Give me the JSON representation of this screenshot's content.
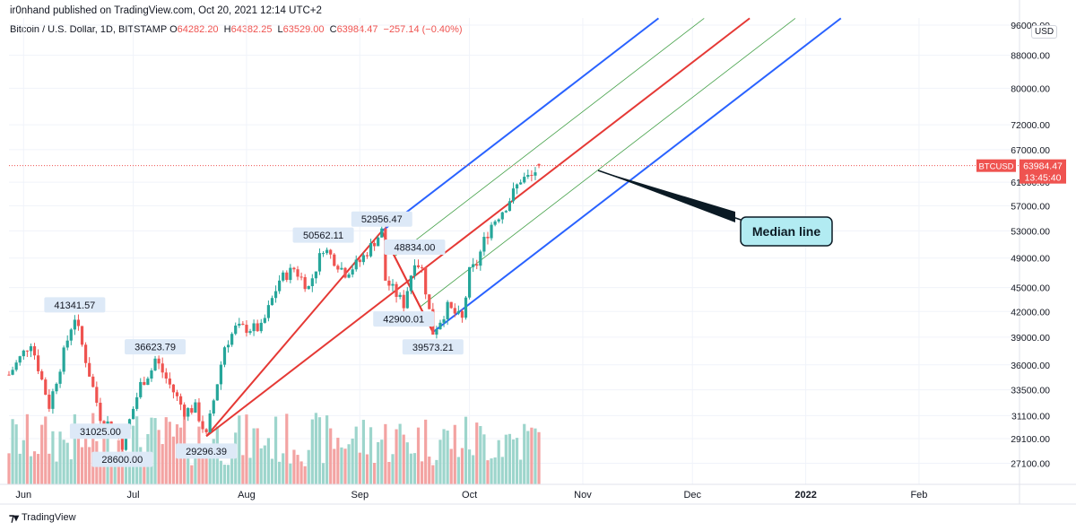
{
  "header": {
    "publisher": "ir0nhand published on TradingView.com, Oct 20, 2021 12:14 UTC+2",
    "symbol": "Bitcoin / U.S. Dollar, 1D, BITSTAMP",
    "open_label": "O",
    "open": "64282.20",
    "high_label": "H",
    "high": "64382.25",
    "low_label": "L",
    "low": "63529.00",
    "close_label": "C",
    "close": "63984.47",
    "change": "−257.14 (−0.40%)",
    "currency": "USD"
  },
  "footer": {
    "brand": "TradingView",
    "icon": "tradingview-logo-icon"
  },
  "price_tag": {
    "symbol": "BTCUSD",
    "price": "63984.47",
    "countdown": "13:45:40"
  },
  "annotation": {
    "label": "Median line"
  },
  "colors": {
    "up": "#26a69a",
    "down": "#ef5350",
    "vol_up": "#9dd5cc",
    "vol_down": "#f3a3a2",
    "median": "#e53935",
    "outer": "#2962ff",
    "inner": "#43a047",
    "callout_bg": "#b2ebf2"
  },
  "chart_data": {
    "type": "candlestick",
    "title": "Bitcoin / U.S. Dollar, 1D, BITSTAMP",
    "y_scale": "log",
    "ylim": [
      25500,
      98000
    ],
    "y_ticks": [
      96000,
      88000,
      80000,
      72000,
      67000,
      61000,
      57000,
      53000,
      49000,
      45000,
      42000,
      39000,
      36000,
      33500,
      31100,
      29100,
      27100
    ],
    "x_ticks": [
      "Jun",
      "Jul",
      "Aug",
      "Sep",
      "Oct",
      "Nov",
      "Dec",
      "2022",
      "Feb"
    ],
    "x_range": [
      "2021-05-28",
      "2022-02-28"
    ],
    "last_price": 63984.47,
    "price_path": [
      [
        "2021-05-28",
        35000
      ],
      [
        "2021-06-03",
        38500
      ],
      [
        "2021-06-08",
        32000
      ],
      [
        "2021-06-14",
        40200
      ],
      [
        "2021-06-15",
        41341.57
      ],
      [
        "2021-06-22",
        31025.0
      ],
      [
        "2021-06-26",
        29800
      ],
      [
        "2021-06-28",
        28600.0
      ],
      [
        "2021-07-03",
        34000
      ],
      [
        "2021-07-06",
        35500
      ],
      [
        "2021-07-07",
        36623.79
      ],
      [
        "2021-07-15",
        31500
      ],
      [
        "2021-07-18",
        31800
      ],
      [
        "2021-07-21",
        29296.39
      ],
      [
        "2021-07-26",
        38000
      ],
      [
        "2021-07-29",
        40000
      ],
      [
        "2021-08-05",
        40000
      ],
      [
        "2021-08-10",
        46000
      ],
      [
        "2021-08-14",
        47500
      ],
      [
        "2021-08-18",
        45000
      ],
      [
        "2021-08-22",
        50562.11
      ],
      [
        "2021-08-28",
        47000
      ],
      [
        "2021-09-01",
        48500
      ],
      [
        "2021-09-07",
        52956.47
      ],
      [
        "2021-09-08",
        46000
      ],
      [
        "2021-09-13",
        42900.01
      ],
      [
        "2021-09-16",
        48834.0
      ],
      [
        "2021-09-18",
        47500
      ],
      [
        "2021-09-21",
        39573.21
      ],
      [
        "2021-09-25",
        42500
      ],
      [
        "2021-09-29",
        41000
      ],
      [
        "2021-10-01",
        47000
      ],
      [
        "2021-10-03",
        48200
      ],
      [
        "2021-10-05",
        51500
      ],
      [
        "2021-10-07",
        54000
      ],
      [
        "2021-10-11",
        57000
      ],
      [
        "2021-10-15",
        61500
      ],
      [
        "2021-10-18",
        62000
      ],
      [
        "2021-10-20",
        63984.47
      ]
    ],
    "point_labels": [
      {
        "date": "2021-06-15",
        "price": 41341.57,
        "text": "41341.57",
        "side": "above"
      },
      {
        "date": "2021-06-22",
        "price": 31025.0,
        "text": "31025.00",
        "side": "below"
      },
      {
        "date": "2021-06-28",
        "price": 28600.0,
        "text": "28600.00",
        "side": "below"
      },
      {
        "date": "2021-07-07",
        "price": 36623.79,
        "text": "36623.79",
        "side": "above"
      },
      {
        "date": "2021-07-21",
        "price": 29296.39,
        "text": "29296.39",
        "side": "below"
      },
      {
        "date": "2021-08-22",
        "price": 50562.11,
        "text": "50562.11",
        "side": "above"
      },
      {
        "date": "2021-09-07",
        "price": 52956.47,
        "text": "52956.47",
        "side": "above"
      },
      {
        "date": "2021-09-13",
        "price": 42900.01,
        "text": "42900.01",
        "side": "below"
      },
      {
        "date": "2021-09-16",
        "price": 48834.0,
        "text": "48834.00",
        "side": "above"
      },
      {
        "date": "2021-09-21",
        "price": 39573.21,
        "text": "39573.21",
        "side": "below"
      }
    ],
    "pitchfork": {
      "anchors": [
        {
          "date": "2021-07-21",
          "price": 29296.39
        },
        {
          "date": "2021-09-07",
          "price": 52956.47
        },
        {
          "date": "2021-09-21",
          "price": 39573.21
        }
      ]
    },
    "grid": true
  }
}
